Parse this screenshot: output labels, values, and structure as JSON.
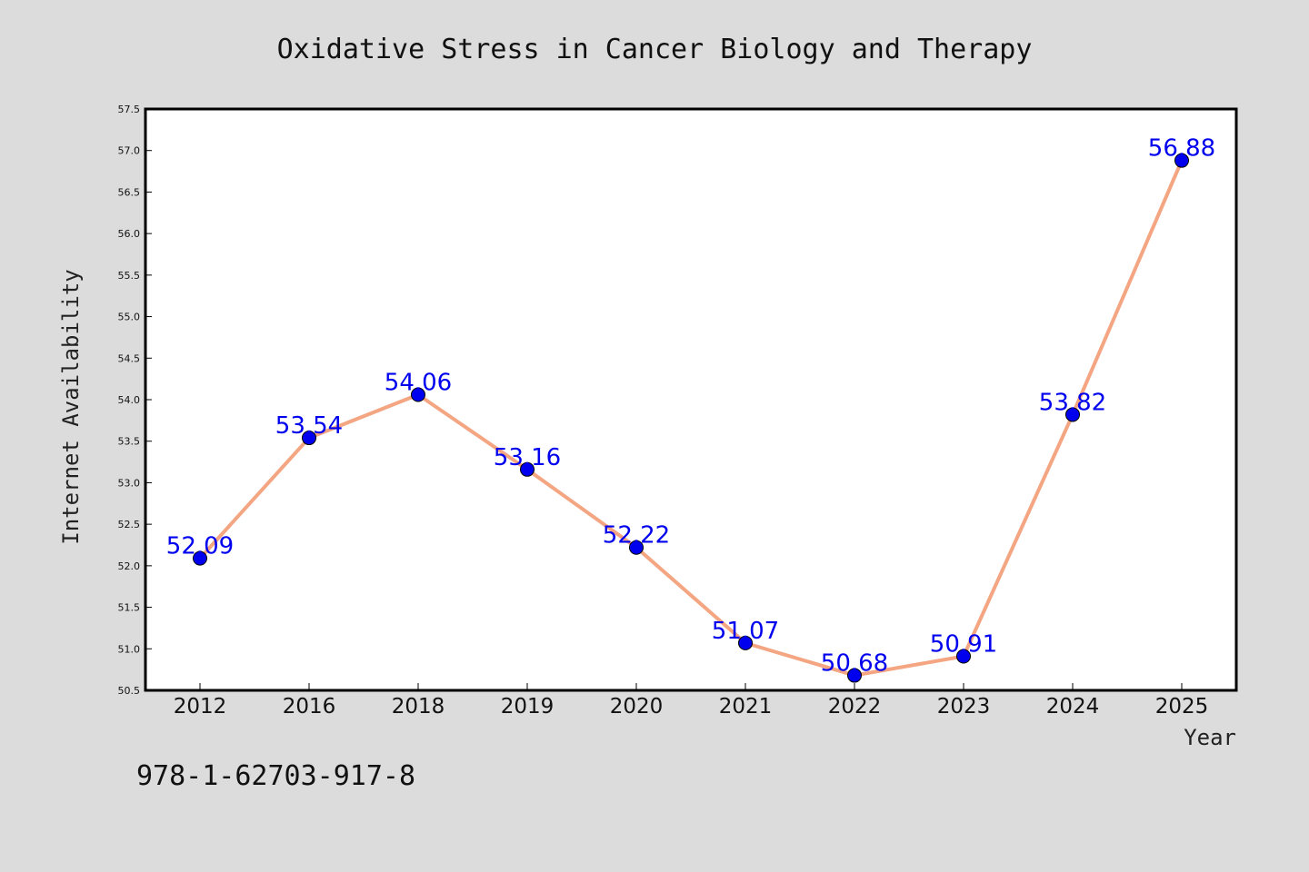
{
  "chart_data": {
    "type": "line",
    "title": "Oxidative Stress in Cancer Biology and Therapy",
    "xlabel": "Year",
    "ylabel": "Internet Availability",
    "categories": [
      "2012",
      "2016",
      "2018",
      "2019",
      "2020",
      "2021",
      "2022",
      "2023",
      "2024",
      "2025"
    ],
    "series": [
      {
        "values": [
          52.09,
          53.54,
          54.06,
          53.16,
          52.22,
          51.07,
          50.68,
          50.91,
          53.82,
          56.88
        ]
      }
    ],
    "data_labels": [
      "52.09",
      "53.54",
      "54.06",
      "53.16",
      "52.22",
      "51.07",
      "50.68",
      "50.91",
      "53.82",
      "56.88"
    ],
    "ylim": [
      50.5,
      57.5
    ],
    "yticks": [
      "50.5",
      "51.0",
      "51.5",
      "52.0",
      "52.5",
      "53.0",
      "53.5",
      "54.0",
      "54.5",
      "55.0",
      "55.5",
      "56.0",
      "56.5",
      "57.0",
      "57.5"
    ],
    "grid": false,
    "legend": "none",
    "colors": {
      "line": "#f4a582",
      "marker": "#0000ee",
      "label": "#0000ee",
      "background": "#dcdcdc",
      "plot_background": "#ffffff"
    }
  },
  "footer": {
    "isbn": "978-1-62703-917-8"
  }
}
